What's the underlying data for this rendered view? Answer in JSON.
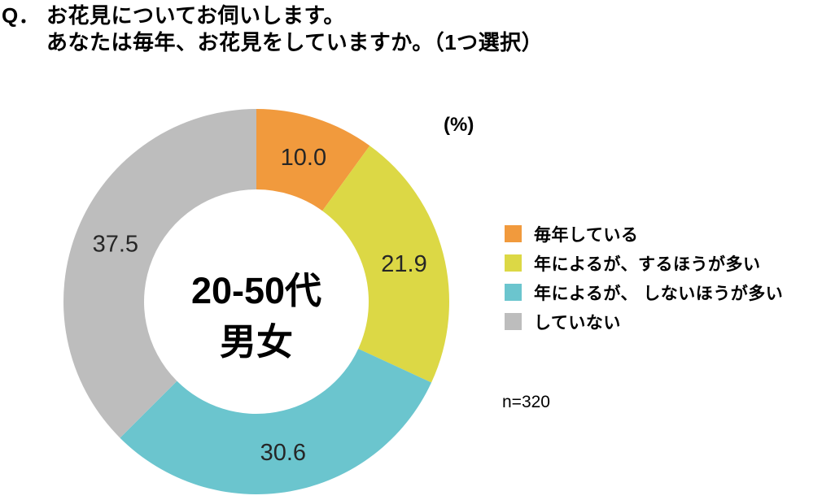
{
  "header": {
    "q_prefix": "Q．",
    "line1": "お花見についてお伺いします。",
    "line2": "あなたは毎年、お花見をしていますか。（1つ選択）"
  },
  "chart_data": {
    "type": "pie",
    "subtype": "donut",
    "unit_label": "(%)",
    "center_label_line1": "20-50代",
    "center_label_line2": "男女",
    "sample_size_label": "n=320",
    "start_angle": "top",
    "direction": "clockwise",
    "legend_position": "right",
    "inner_radius_ratio": 0.58,
    "value_text_color": "#262626",
    "segments": [
      {
        "label": "毎年している",
        "value": 10.0,
        "color": "#F19A3D"
      },
      {
        "label": "年によるが、するほうが多い",
        "value": 21.9,
        "color": "#DCD845"
      },
      {
        "label": "年によるが、 しないほうが多い",
        "value": 30.6,
        "color": "#6BC5CE"
      },
      {
        "label": "していない",
        "value": 37.5,
        "color": "#BDBDBD"
      }
    ]
  }
}
